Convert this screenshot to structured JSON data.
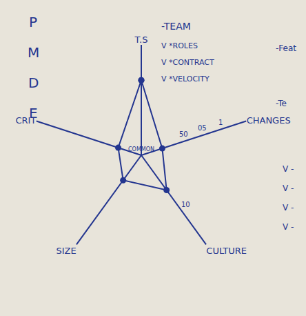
{
  "chart_data": {
    "type": "radar",
    "categories": [
      "T.S",
      "CHANGES",
      "CULTURE",
      "SIZE",
      "CRIT"
    ],
    "values": [
      0.68,
      0.2,
      0.39,
      0.28,
      0.22
    ],
    "ylim": [
      0,
      1
    ],
    "color": "#23358f",
    "marker": "circle",
    "grid": true
  },
  "notes": {
    "team": [
      "-TEAM",
      "V *ROLES",
      "V *CONTRACT",
      "V *VELOCITY"
    ],
    "left_letters": [
      "P",
      "M",
      "D",
      "E"
    ],
    "right": [
      "-Feat",
      "-Te"
    ],
    "right_checks": [
      "V -",
      "V -",
      "V -",
      "V -"
    ],
    "center": "COMMON",
    "axis_ticks": {
      "CHANGES": [
        "50",
        "05",
        "1"
      ],
      "CULTURE": [
        "10"
      ]
    }
  }
}
